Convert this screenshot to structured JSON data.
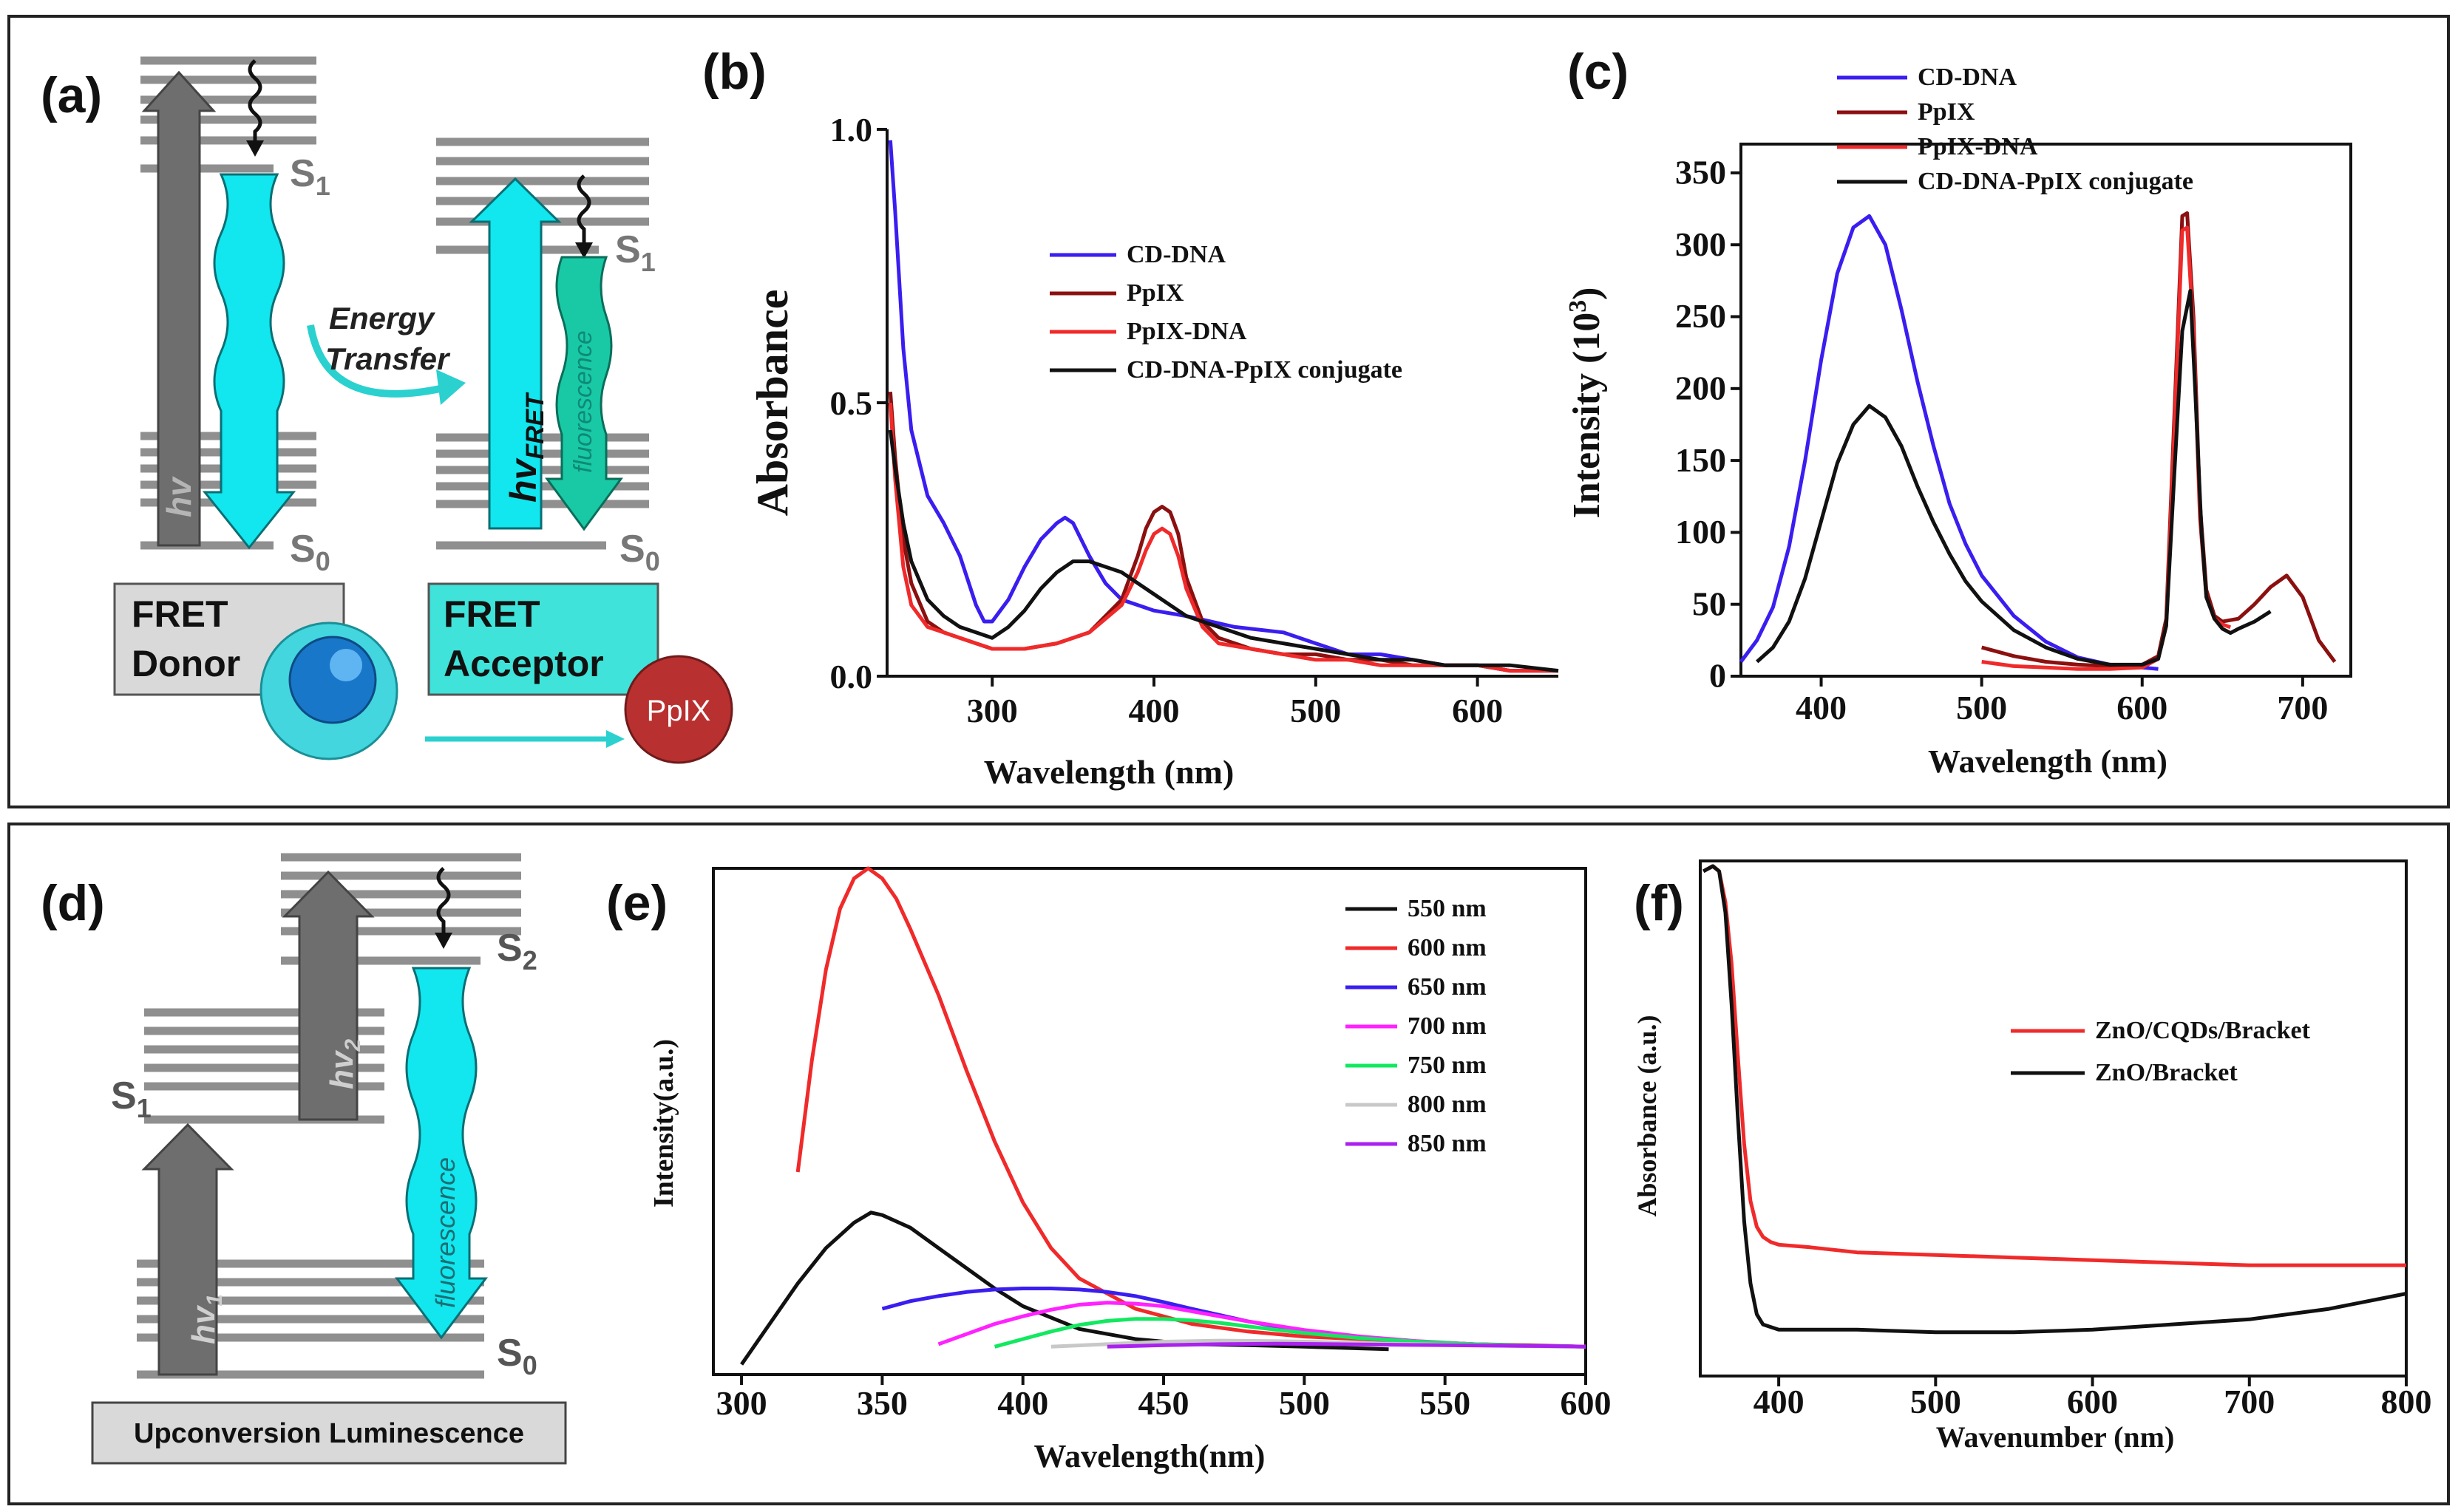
{
  "colors": {
    "blue": "#3a1ef0",
    "darkred": "#8b1010",
    "red": "#f02a2a",
    "black": "#111111",
    "cyan": "#12e6ee",
    "teal": "#19c9a6",
    "gray": "#707070",
    "lightgray": "#d9d9d9",
    "panelcyan": "#3fe3d9",
    "ppix": "#b83030",
    "magenta": "#ff22ff",
    "green": "#12e860",
    "silver": "#c8c8c8",
    "purple": "#aa22ee"
  },
  "panel_a": {
    "label": "(a)",
    "s1_donor": "S1",
    "s0_donor": "S0",
    "s1_acc": "S1",
    "s0_acc": "S0",
    "hv": "hv",
    "hv_fret": "hvFRET",
    "fluorescence": "fluorescence",
    "energy_line1": "Energy",
    "energy_line2": "Transfer",
    "donor_line1": "FRET",
    "donor_line2": "Donor",
    "acceptor_line1": "FRET",
    "acceptor_line2": "Acceptor",
    "ppix_badge": "PpIX"
  },
  "panel_d": {
    "label": "(d)",
    "s2": "S2",
    "s1": "S1",
    "s0": "S0",
    "hv2": "hv2",
    "hv1": "hv1",
    "fluorescence": "fluorescence",
    "caption": "Upconversion Luminescence"
  },
  "chart_data": [
    {
      "panel": "(b)",
      "type": "line",
      "xlabel": "Wavelength (nm)",
      "ylabel": "Absorbance",
      "xlim": [
        235,
        650
      ],
      "ylim": [
        0,
        1.0
      ],
      "xticks": [
        300,
        400,
        500,
        600
      ],
      "yticks": [
        0.0,
        0.5,
        1.0
      ],
      "ytick_labels": [
        "0.0",
        "0.5",
        "1.0"
      ],
      "legend": [
        "CD-DNA",
        "PpIX",
        "PpIX-DNA",
        "CD-DNA-PpIX conjugate"
      ],
      "series": [
        {
          "name": "CD-DNA",
          "color": "#3a1ef0",
          "x": [
            237,
            240,
            245,
            250,
            260,
            270,
            280,
            290,
            295,
            300,
            310,
            320,
            330,
            340,
            345,
            350,
            360,
            370,
            380,
            390,
            400,
            420,
            450,
            480,
            500,
            520,
            540,
            560,
            580,
            600,
            620,
            650
          ],
          "y": [
            0.98,
            0.85,
            0.6,
            0.45,
            0.33,
            0.28,
            0.22,
            0.13,
            0.1,
            0.1,
            0.14,
            0.2,
            0.25,
            0.28,
            0.29,
            0.28,
            0.22,
            0.17,
            0.14,
            0.13,
            0.12,
            0.11,
            0.09,
            0.08,
            0.06,
            0.04,
            0.04,
            0.03,
            0.02,
            0.02,
            0.01,
            0.01
          ]
        },
        {
          "name": "PpIX",
          "color": "#8b1010",
          "x": [
            237,
            240,
            245,
            250,
            260,
            270,
            280,
            290,
            300,
            320,
            340,
            360,
            380,
            390,
            395,
            400,
            405,
            410,
            415,
            420,
            430,
            440,
            460,
            480,
            500,
            520,
            540,
            560,
            580,
            600,
            620,
            650
          ],
          "y": [
            0.52,
            0.4,
            0.25,
            0.17,
            0.1,
            0.08,
            0.07,
            0.06,
            0.05,
            0.05,
            0.06,
            0.08,
            0.14,
            0.22,
            0.27,
            0.3,
            0.31,
            0.3,
            0.26,
            0.18,
            0.1,
            0.07,
            0.05,
            0.04,
            0.04,
            0.03,
            0.03,
            0.02,
            0.02,
            0.02,
            0.01,
            0.01
          ]
        },
        {
          "name": "PpIX-DNA",
          "color": "#f02a2a",
          "x": [
            237,
            240,
            245,
            250,
            260,
            270,
            280,
            290,
            300,
            320,
            340,
            360,
            380,
            390,
            395,
            400,
            405,
            410,
            415,
            420,
            430,
            440,
            460,
            480,
            500,
            520,
            540,
            560,
            580,
            600,
            620,
            650
          ],
          "y": [
            0.5,
            0.36,
            0.2,
            0.13,
            0.09,
            0.08,
            0.07,
            0.06,
            0.05,
            0.05,
            0.06,
            0.08,
            0.13,
            0.19,
            0.23,
            0.26,
            0.27,
            0.26,
            0.22,
            0.16,
            0.09,
            0.06,
            0.05,
            0.04,
            0.03,
            0.03,
            0.02,
            0.02,
            0.02,
            0.02,
            0.01,
            0.01
          ]
        },
        {
          "name": "CD-DNA-PpIX conjugate",
          "color": "#111111",
          "x": [
            237,
            240,
            245,
            250,
            260,
            270,
            280,
            290,
            300,
            310,
            320,
            330,
            340,
            350,
            360,
            370,
            380,
            390,
            400,
            410,
            420,
            440,
            460,
            480,
            500,
            520,
            540,
            560,
            580,
            600,
            620,
            650
          ],
          "y": [
            0.45,
            0.38,
            0.28,
            0.21,
            0.14,
            0.11,
            0.09,
            0.08,
            0.07,
            0.09,
            0.12,
            0.16,
            0.19,
            0.21,
            0.21,
            0.2,
            0.19,
            0.17,
            0.15,
            0.13,
            0.11,
            0.09,
            0.07,
            0.06,
            0.05,
            0.04,
            0.03,
            0.03,
            0.02,
            0.02,
            0.02,
            0.01
          ]
        }
      ]
    },
    {
      "panel": "(c)",
      "type": "line",
      "xlabel": "Wavelength (nm)",
      "ylabel": "Intensity (10",
      "ylabel_sup": "3",
      "ylabel_end": ")",
      "xlim": [
        350,
        730
      ],
      "ylim": [
        0,
        370
      ],
      "xticks": [
        400,
        500,
        600,
        700
      ],
      "yticks": [
        0,
        50,
        100,
        150,
        200,
        250,
        300,
        350
      ],
      "legend": [
        "CD-DNA",
        "PpIX",
        "PpIX-DNA",
        "CD-DNA-PpIX conjugate"
      ],
      "series": [
        {
          "name": "CD-DNA",
          "color": "#3a1ef0",
          "x": [
            350,
            360,
            370,
            380,
            390,
            400,
            410,
            420,
            430,
            440,
            450,
            460,
            470,
            480,
            490,
            500,
            520,
            540,
            560,
            580,
            600,
            610
          ],
          "y": [
            10,
            25,
            48,
            90,
            150,
            220,
            280,
            312,
            320,
            300,
            255,
            205,
            160,
            120,
            92,
            70,
            42,
            24,
            13,
            8,
            6,
            5
          ]
        },
        {
          "name": "PpIX",
          "color": "#8b1010",
          "x": [
            500,
            520,
            540,
            560,
            580,
            600,
            610,
            615,
            620,
            625,
            628,
            632,
            636,
            640,
            645,
            650,
            660,
            670,
            680,
            690,
            700,
            710,
            720
          ],
          "y": [
            20,
            14,
            10,
            8,
            7,
            8,
            14,
            40,
            180,
            320,
            322,
            250,
            120,
            60,
            42,
            38,
            40,
            50,
            62,
            70,
            55,
            25,
            10
          ]
        },
        {
          "name": "PpIX-DNA",
          "color": "#f02a2a",
          "x": [
            500,
            520,
            540,
            560,
            580,
            600,
            610,
            615,
            620,
            625,
            628,
            632,
            636,
            640,
            645,
            650,
            655
          ],
          "y": [
            10,
            7,
            6,
            5,
            5,
            6,
            12,
            35,
            170,
            310,
            312,
            240,
            110,
            55,
            40,
            36,
            34
          ]
        },
        {
          "name": "CD-DNA-PpIX conjugate",
          "color": "#111111",
          "x": [
            360,
            370,
            380,
            390,
            400,
            410,
            420,
            430,
            440,
            450,
            460,
            470,
            480,
            490,
            500,
            520,
            540,
            560,
            580,
            600,
            610,
            615,
            620,
            625,
            630,
            633,
            637,
            640,
            645,
            650,
            655,
            660,
            670,
            680
          ],
          "y": [
            10,
            20,
            38,
            68,
            108,
            148,
            175,
            188,
            180,
            160,
            132,
            107,
            85,
            66,
            52,
            32,
            20,
            12,
            8,
            8,
            12,
            35,
            140,
            240,
            268,
            200,
            100,
            55,
            40,
            33,
            30,
            33,
            38,
            45
          ]
        }
      ]
    },
    {
      "panel": "(e)",
      "type": "line",
      "xlabel": "Wavelength(nm)",
      "ylabel": "Intensity(a.u.)",
      "xlim": [
        290,
        600
      ],
      "ylim": [
        0,
        1.0
      ],
      "xticks": [
        300,
        350,
        400,
        450,
        500,
        550,
        600
      ],
      "yticks": [],
      "legend": [
        "550 nm",
        "600 nm",
        "650 nm",
        "700 nm",
        "750 nm",
        "800 nm",
        "850 nm"
      ],
      "series": [
        {
          "name": "550 nm",
          "color": "#111111",
          "x": [
            300,
            310,
            320,
            330,
            340,
            346,
            350,
            360,
            370,
            380,
            390,
            400,
            420,
            440,
            460,
            480,
            500,
            530
          ],
          "y": [
            0.02,
            0.1,
            0.18,
            0.25,
            0.3,
            0.32,
            0.315,
            0.29,
            0.25,
            0.21,
            0.17,
            0.135,
            0.09,
            0.07,
            0.06,
            0.058,
            0.055,
            0.05
          ]
        },
        {
          "name": "600 nm",
          "color": "#f02a2a",
          "x": [
            320,
            325,
            330,
            335,
            340,
            345,
            350,
            355,
            360,
            370,
            380,
            390,
            400,
            410,
            420,
            440,
            460,
            480,
            500,
            520,
            540,
            560,
            580,
            600
          ],
          "y": [
            0.4,
            0.62,
            0.8,
            0.92,
            0.98,
            1.0,
            0.98,
            0.94,
            0.88,
            0.75,
            0.6,
            0.46,
            0.34,
            0.25,
            0.19,
            0.13,
            0.1,
            0.085,
            0.075,
            0.07,
            0.065,
            0.06,
            0.058,
            0.055
          ]
        },
        {
          "name": "650 nm",
          "color": "#3a1ef0",
          "x": [
            350,
            360,
            370,
            380,
            390,
            400,
            410,
            420,
            430,
            440,
            450,
            460,
            480,
            500,
            520,
            540,
            560,
            580,
            600
          ],
          "y": [
            0.13,
            0.145,
            0.155,
            0.163,
            0.168,
            0.17,
            0.17,
            0.168,
            0.163,
            0.155,
            0.143,
            0.13,
            0.105,
            0.085,
            0.072,
            0.065,
            0.06,
            0.057,
            0.055
          ]
        },
        {
          "name": "700 nm",
          "color": "#ff22ff",
          "x": [
            370,
            380,
            390,
            400,
            410,
            420,
            430,
            440,
            450,
            460,
            480,
            500,
            520,
            540,
            560,
            580,
            600
          ],
          "y": [
            0.06,
            0.08,
            0.1,
            0.115,
            0.128,
            0.138,
            0.142,
            0.14,
            0.135,
            0.125,
            0.105,
            0.088,
            0.075,
            0.066,
            0.06,
            0.057,
            0.055
          ]
        },
        {
          "name": "750 nm",
          "color": "#12e860",
          "x": [
            390,
            400,
            410,
            420,
            430,
            440,
            450,
            460,
            470,
            480,
            500,
            520,
            540,
            560,
            580,
            600
          ],
          "y": [
            0.055,
            0.07,
            0.085,
            0.098,
            0.106,
            0.11,
            0.11,
            0.107,
            0.102,
            0.095,
            0.082,
            0.072,
            0.065,
            0.06,
            0.057,
            0.055
          ]
        },
        {
          "name": "800 nm",
          "color": "#c8c8c8",
          "x": [
            410,
            430,
            450,
            470,
            490,
            510,
            530,
            550,
            570,
            590,
            600
          ],
          "y": [
            0.055,
            0.06,
            0.065,
            0.067,
            0.066,
            0.064,
            0.061,
            0.059,
            0.057,
            0.055,
            0.055
          ]
        },
        {
          "name": "850 nm",
          "color": "#aa22ee",
          "x": [
            430,
            450,
            470,
            490,
            510,
            530,
            550,
            570,
            590,
            600
          ],
          "y": [
            0.055,
            0.058,
            0.06,
            0.061,
            0.06,
            0.059,
            0.058,
            0.057,
            0.056,
            0.055
          ]
        }
      ]
    },
    {
      "panel": "(f)",
      "type": "line",
      "xlabel": "Wavenumber (nm)",
      "ylabel": "Absorbance (a.u.)",
      "xlim": [
        350,
        800
      ],
      "ylim": [
        0,
        1.0
      ],
      "xticks": [
        400,
        500,
        600,
        700,
        800
      ],
      "yticks": [],
      "legend": [
        "ZnO/CQDs/Bracket",
        "ZnO/Bracket"
      ],
      "series": [
        {
          "name": "ZnO/CQDs/Bracket",
          "color": "#f02a2a",
          "x": [
            352,
            358,
            362,
            366,
            370,
            374,
            378,
            382,
            386,
            390,
            395,
            400,
            420,
            450,
            500,
            550,
            600,
            650,
            700,
            750,
            800
          ],
          "y": [
            0.98,
            0.99,
            0.98,
            0.92,
            0.8,
            0.62,
            0.45,
            0.34,
            0.29,
            0.27,
            0.26,
            0.255,
            0.25,
            0.24,
            0.235,
            0.23,
            0.225,
            0.22,
            0.215,
            0.215,
            0.215
          ]
        },
        {
          "name": "ZnO/Bracket",
          "color": "#111111",
          "x": [
            352,
            358,
            362,
            366,
            370,
            374,
            378,
            382,
            386,
            390,
            395,
            400,
            420,
            450,
            500,
            550,
            600,
            650,
            700,
            750,
            800
          ],
          "y": [
            0.98,
            0.99,
            0.98,
            0.9,
            0.72,
            0.5,
            0.3,
            0.18,
            0.12,
            0.1,
            0.095,
            0.09,
            0.09,
            0.09,
            0.085,
            0.085,
            0.09,
            0.1,
            0.11,
            0.13,
            0.16
          ]
        }
      ]
    }
  ]
}
